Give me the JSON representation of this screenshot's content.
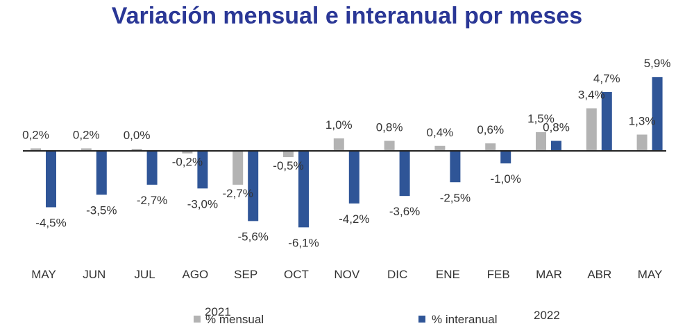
{
  "chart_data": {
    "type": "bar",
    "title": "Variación mensual e interanual por meses",
    "categories": [
      "MAY",
      "JUN",
      "JUL",
      "AGO",
      "SEP",
      "OCT",
      "NOV",
      "DIC",
      "ENE",
      "FEB",
      "MAR",
      "ABR",
      "MAY"
    ],
    "year_labels": [
      "2021",
      "2022"
    ],
    "series": [
      {
        "name": "% mensual",
        "color": "#b3b3b3",
        "values": [
          0.2,
          0.2,
          0.0,
          -0.2,
          -2.7,
          -0.5,
          1.0,
          0.8,
          0.4,
          0.6,
          1.5,
          3.4,
          1.3
        ],
        "labels": [
          "0,2%",
          "0,2%",
          "0,0%",
          "-0,2%",
          "-2,7%",
          "-0,5%",
          "1,0%",
          "0,8%",
          "0,4%",
          "0,6%",
          "1,5%",
          "3,4%",
          "1,3%"
        ]
      },
      {
        "name": "% interanual",
        "color": "#2f5597",
        "values": [
          -4.5,
          -3.5,
          -2.7,
          -3.0,
          -5.6,
          -6.1,
          -4.2,
          -3.6,
          -2.5,
          -1.0,
          0.8,
          4.7,
          5.9
        ],
        "labels": [
          "-4,5%",
          "-3,5%",
          "-2,7%",
          "-3,0%",
          "-5,6%",
          "-6,1%",
          "-4,2%",
          "-3,6%",
          "-2,5%",
          "-1,0%",
          "0,8%",
          "4,7%",
          "5,9%"
        ]
      }
    ],
    "legend_position": "bottom",
    "grid": false
  }
}
